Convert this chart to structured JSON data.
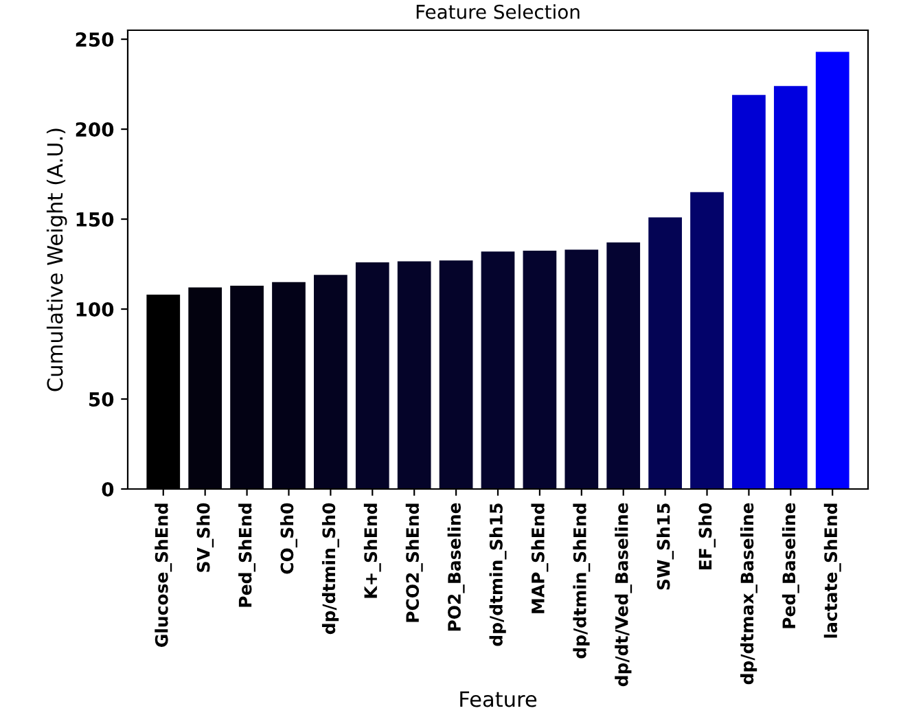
{
  "chart_data": {
    "type": "bar",
    "title": "Feature Selection",
    "xlabel": "Feature",
    "ylabel": "Cumulative Weight (A.U.)",
    "categories": [
      "Glucose_ShEnd",
      "SV_Sh0",
      "Ped_ShEnd",
      "CO_Sh0",
      "dp/dtmin_Sh0",
      "K+_ShEnd",
      "PCO2_ShEnd",
      "PO2_Baseline",
      "dp/dtmin_Sh15",
      "MAP_ShEnd",
      "dp/dtmin_ShEnd",
      "dp/dt/Ved_Baseline",
      "SW_Sh15",
      "EF_Sh0",
      "dp/dtmax_Baseline",
      "Ped_Baseline",
      "lactate_ShEnd"
    ],
    "values": [
      108,
      112,
      113,
      115,
      119,
      126,
      126.5,
      127,
      132,
      132.5,
      133,
      137,
      151,
      165,
      219,
      224,
      243
    ],
    "colors": [
      "#000000",
      "#03020f",
      "#030214",
      "#030218",
      "#040320",
      "#050428",
      "#050429",
      "#05042a",
      "#05042d",
      "#05042e",
      "#05042e",
      "#050432",
      "#040454",
      "#03036a",
      "#0000d4",
      "#0000e0",
      "#0000ff"
    ],
    "ylim": [
      0,
      255
    ],
    "yticks": [
      0,
      50,
      100,
      150,
      200,
      250
    ],
    "grid": false
  }
}
